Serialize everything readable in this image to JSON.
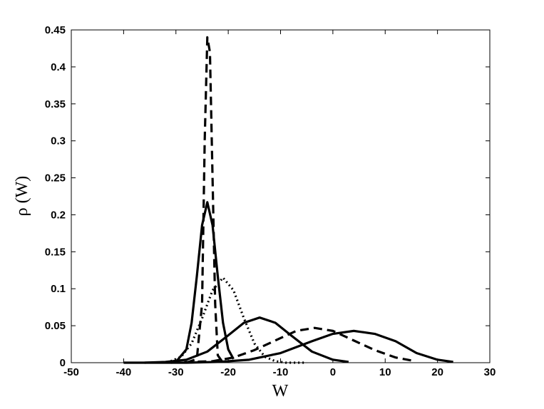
{
  "chart_data": {
    "type": "line",
    "x_label": "W",
    "y_label": "ρ (W)",
    "xlim": [
      -50,
      30
    ],
    "xticks": [
      -50,
      -40,
      -30,
      -20,
      -10,
      0,
      10,
      20,
      30
    ],
    "ylim": [
      0,
      0.45
    ],
    "yticks": [
      0,
      0.05,
      0.1,
      0.15,
      0.2,
      0.25,
      0.3,
      0.35,
      0.4,
      0.45
    ],
    "series": [
      {
        "color": "#000000",
        "dash": "dashed",
        "x": [
          -28,
          -26,
          -25,
          -24.5,
          -24,
          -23.5,
          -23,
          -22.5,
          -22,
          -21
        ],
        "values": [
          0,
          0.005,
          0.08,
          0.3,
          0.44,
          0.42,
          0.25,
          0.08,
          0.01,
          0
        ]
      },
      {
        "color": "#000000",
        "dash": "solid",
        "x": [
          -30,
          -28,
          -27,
          -26,
          -25,
          -24,
          -23,
          -22,
          -21,
          -20,
          -19
        ],
        "values": [
          0.001,
          0.018,
          0.054,
          0.117,
          0.186,
          0.217,
          0.186,
          0.117,
          0.054,
          0.018,
          0.005
        ]
      },
      {
        "color": "#000000",
        "dash": "dotted",
        "x": [
          -31,
          -29,
          -27,
          -25,
          -23,
          -21,
          -19,
          -17,
          -15,
          -13,
          -11,
          -9,
          -7,
          -5
        ],
        "values": [
          0.002,
          0.008,
          0.026,
          0.06,
          0.098,
          0.115,
          0.098,
          0.06,
          0.026,
          0.008,
          0.002,
          0,
          0,
          0
        ]
      },
      {
        "color": "#000000",
        "dash": "solid",
        "x": [
          -36,
          -32,
          -28,
          -24,
          -20,
          -17,
          -14,
          -11,
          -8,
          -4,
          0,
          3
        ],
        "values": [
          0,
          0.001,
          0.004,
          0.015,
          0.037,
          0.054,
          0.061,
          0.054,
          0.037,
          0.015,
          0.004,
          0.001
        ]
      },
      {
        "color": "#000000",
        "dash": "dashed",
        "x": [
          -31,
          -27,
          -23,
          -19,
          -15,
          -11,
          -7,
          -3.5,
          0,
          4,
          8,
          12,
          15
        ],
        "values": [
          0,
          0.001,
          0.002,
          0.007,
          0.017,
          0.03,
          0.043,
          0.047,
          0.043,
          0.03,
          0.017,
          0.007,
          0.003
        ]
      },
      {
        "color": "#000000",
        "dash": "solid",
        "x": [
          -40,
          -34,
          -28,
          -22,
          -16,
          -10,
          -4,
          0,
          4,
          8,
          12,
          16,
          20,
          23
        ],
        "values": [
          0,
          0,
          0,
          0.001,
          0.004,
          0.013,
          0.029,
          0.039,
          0.043,
          0.039,
          0.029,
          0.013,
          0.004,
          0.001
        ]
      }
    ]
  }
}
